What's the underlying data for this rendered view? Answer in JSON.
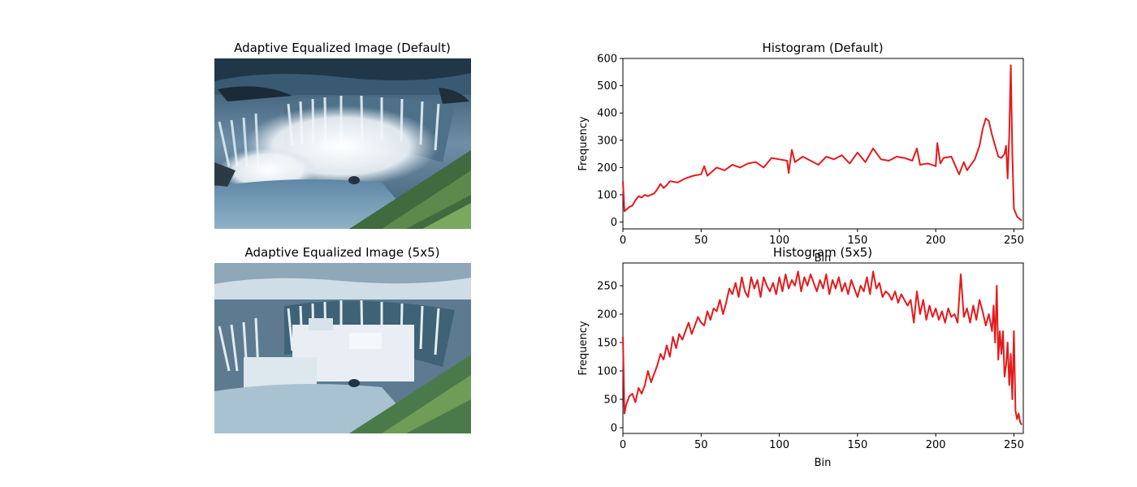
{
  "panels": {
    "image_default": {
      "title": "Adaptive Equalized Image (Default)"
    },
    "image_5x5": {
      "title": "Adaptive Equalized Image (5x5)"
    }
  },
  "line_color": "#e41a1c",
  "chart_data": [
    {
      "type": "line",
      "title": "Histogram (Default)",
      "xlabel": "Bin",
      "ylabel": "Frequency",
      "xlim": [
        0,
        256
      ],
      "ylim": [
        -25,
        600
      ],
      "xticks": [
        0,
        50,
        100,
        150,
        200,
        250
      ],
      "yticks": [
        0,
        100,
        200,
        300,
        400,
        500,
        600
      ],
      "series": [
        {
          "x": [
            0,
            1,
            2,
            4,
            6,
            8,
            10,
            12,
            14,
            16,
            18,
            20,
            22,
            24,
            26,
            28,
            30,
            35,
            40,
            45,
            50,
            52,
            54,
            56,
            58,
            60,
            65,
            70,
            75,
            80,
            85,
            90,
            95,
            100,
            105,
            106,
            108,
            110,
            115,
            120,
            125,
            130,
            135,
            140,
            145,
            150,
            155,
            160,
            165,
            170,
            175,
            180,
            185,
            188,
            190,
            195,
            200,
            201,
            203,
            205,
            210,
            215,
            218,
            220,
            225,
            228,
            230,
            232,
            234,
            236,
            238,
            240,
            242,
            244,
            245,
            246,
            247,
            248,
            249,
            250,
            252,
            254,
            255
          ],
          "values": [
            150,
            40,
            45,
            55,
            60,
            80,
            95,
            90,
            100,
            95,
            100,
            105,
            120,
            140,
            125,
            135,
            150,
            145,
            160,
            170,
            175,
            205,
            170,
            180,
            190,
            200,
            190,
            210,
            200,
            215,
            220,
            200,
            235,
            230,
            225,
            180,
            265,
            220,
            240,
            225,
            210,
            240,
            230,
            245,
            215,
            255,
            220,
            270,
            230,
            225,
            240,
            235,
            225,
            270,
            210,
            215,
            205,
            290,
            215,
            235,
            240,
            175,
            220,
            190,
            230,
            280,
            340,
            380,
            370,
            320,
            280,
            240,
            235,
            250,
            280,
            160,
            320,
            575,
            250,
            50,
            20,
            10,
            5
          ]
        }
      ]
    },
    {
      "type": "line",
      "title": "Histogram (5x5)",
      "xlabel": "Bin",
      "ylabel": "Frequency",
      "xlim": [
        0,
        256
      ],
      "ylim": [
        -10,
        290
      ],
      "xticks": [
        0,
        50,
        100,
        150,
        200,
        250
      ],
      "yticks": [
        0,
        50,
        100,
        150,
        200,
        250
      ],
      "series": [
        {
          "x": [
            0,
            1,
            2,
            4,
            6,
            8,
            10,
            12,
            14,
            16,
            18,
            20,
            22,
            24,
            26,
            28,
            30,
            32,
            34,
            36,
            38,
            40,
            42,
            44,
            46,
            48,
            50,
            52,
            54,
            56,
            58,
            60,
            62,
            64,
            66,
            68,
            70,
            72,
            74,
            76,
            78,
            80,
            82,
            84,
            86,
            88,
            90,
            92,
            94,
            96,
            98,
            100,
            102,
            104,
            106,
            108,
            110,
            112,
            114,
            116,
            118,
            120,
            122,
            124,
            126,
            128,
            130,
            132,
            134,
            136,
            138,
            140,
            142,
            144,
            146,
            148,
            150,
            152,
            154,
            156,
            158,
            160,
            162,
            164,
            166,
            168,
            170,
            172,
            174,
            176,
            178,
            180,
            182,
            184,
            186,
            188,
            190,
            192,
            194,
            196,
            198,
            200,
            202,
            204,
            206,
            208,
            210,
            212,
            214,
            216,
            218,
            220,
            222,
            224,
            226,
            228,
            230,
            232,
            234,
            236,
            237,
            238,
            239,
            240,
            241,
            242,
            243,
            244,
            245,
            246,
            247,
            248,
            249,
            250,
            251,
            252,
            253,
            254,
            255
          ],
          "values": [
            160,
            25,
            40,
            55,
            60,
            45,
            70,
            60,
            75,
            100,
            80,
            95,
            110,
            130,
            120,
            145,
            125,
            160,
            140,
            165,
            155,
            170,
            185,
            165,
            180,
            195,
            185,
            180,
            205,
            190,
            210,
            205,
            225,
            200,
            220,
            245,
            235,
            255,
            230,
            265,
            240,
            230,
            265,
            245,
            260,
            230,
            265,
            250,
            240,
            255,
            235,
            265,
            240,
            270,
            245,
            260,
            250,
            275,
            240,
            265,
            250,
            270,
            255,
            240,
            260,
            245,
            270,
            235,
            260,
            245,
            265,
            240,
            255,
            235,
            260,
            245,
            230,
            250,
            240,
            265,
            235,
            275,
            245,
            255,
            230,
            240,
            235,
            225,
            240,
            220,
            235,
            225,
            215,
            225,
            185,
            240,
            200,
            225,
            190,
            215,
            195,
            210,
            190,
            205,
            185,
            210,
            195,
            200,
            185,
            270,
            195,
            210,
            185,
            215,
            190,
            225,
            205,
            180,
            200,
            170,
            215,
            150,
            250,
            120,
            170,
            130,
            170,
            90,
            110,
            150,
            75,
            130,
            50,
            170,
            30,
            15,
            25,
            10,
            5
          ]
        }
      ]
    }
  ]
}
